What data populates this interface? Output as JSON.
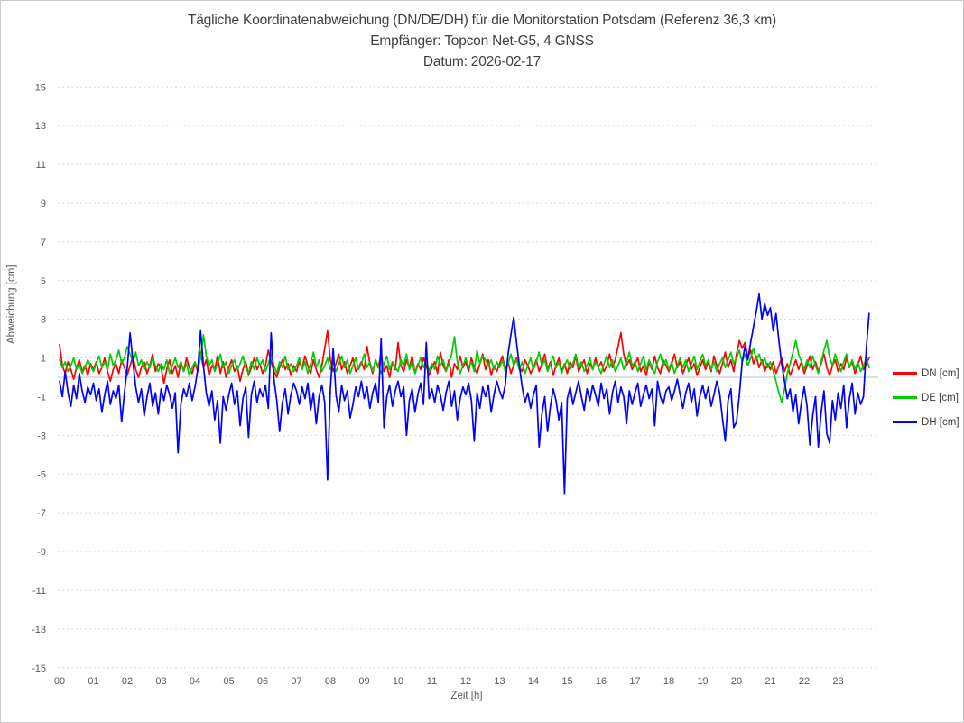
{
  "page": {
    "background": "#FFFFFF",
    "border_color": "#C9C9C9",
    "title_color": "#404040",
    "axis_text_color": "#595959",
    "grid_color": "#DADADA",
    "zero_line_color": "#C0C0C0"
  },
  "chart_data": {
    "type": "line",
    "title": "Tägliche Koordinatenabweichung (DN/DE/DH) für die Monitorstation Potsdam (Referenz 36,3 km)",
    "subtitle": "Empfänger: Topcon Net-G5, 4 GNSS",
    "date_label": "Datum: 2026-02-17",
    "xlabel": "Zeit [h]",
    "ylabel": "Abweichung [cm]",
    "x_ticks": [
      "00",
      "01",
      "02",
      "03",
      "04",
      "05",
      "06",
      "07",
      "08",
      "09",
      "10",
      "11",
      "12",
      "13",
      "14",
      "15",
      "16",
      "17",
      "18",
      "19",
      "20",
      "21",
      "22",
      "23"
    ],
    "y_ticks": [
      15,
      13,
      11,
      9,
      7,
      5,
      3,
      1,
      -1,
      -3,
      -5,
      -7,
      -9,
      -11,
      -13,
      -15
    ],
    "ylim": [
      -15,
      15
    ],
    "xlim_hours": [
      0,
      24
    ],
    "sample_interval_minutes": 5,
    "grid": "horizontal-dotted",
    "legend_position": "right",
    "series": [
      {
        "name": "DN [cm]",
        "color": "#FF0000",
        "values": [
          1.7,
          0.6,
          0.2,
          0.8,
          0.4,
          -0.1,
          0.5,
          0.9,
          0.3,
          0.6,
          0.1,
          0.7,
          0.4,
          0.8,
          0.2,
          0.5,
          1.0,
          0.3,
          -0.2,
          0.4,
          0.7,
          0.2,
          0.9,
          0.5,
          0.1,
          0.6,
          1.1,
          0.4,
          0.0,
          0.5,
          0.8,
          0.2,
          0.6,
          1.2,
          0.3,
          0.7,
          0.5,
          -0.3,
          0.4,
          0.9,
          0.2,
          0.6,
          0.0,
          0.8,
          0.3,
          1.0,
          0.5,
          0.2,
          0.7,
          0.3,
          1.3,
          0.5,
          0.9,
          0.1,
          0.6,
          0.4,
          1.1,
          0.2,
          0.8,
          0.0,
          0.5,
          0.9,
          0.3,
          0.6,
          -0.2,
          0.4,
          0.8,
          0.1,
          0.5,
          1.0,
          0.4,
          0.7,
          0.2,
          0.6,
          1.4,
          0.8,
          0.3,
          0.0,
          0.5,
          0.9,
          0.4,
          0.7,
          0.1,
          0.6,
          0.3,
          0.8,
          0.5,
          1.1,
          0.6,
          0.2,
          0.9,
          0.4,
          0.0,
          0.6,
          1.5,
          2.4,
          0.9,
          0.3,
          0.7,
          1.2,
          0.4,
          0.8,
          0.2,
          0.6,
          1.0,
          0.3,
          0.5,
          0.8,
          0.4,
          1.6,
          0.7,
          0.2,
          0.9,
          0.5,
          1.2,
          0.3,
          0.6,
          0.0,
          0.8,
          0.4,
          1.8,
          0.6,
          0.3,
          0.9,
          0.5,
          1.1,
          0.2,
          0.7,
          0.4,
          1.0,
          0.6,
          0.1,
          0.5,
          0.8,
          0.2,
          1.3,
          0.6,
          0.3,
          0.9,
          0.0,
          0.7,
          0.4,
          1.1,
          0.5,
          0.8,
          0.3,
          1.0,
          0.5,
          0.2,
          0.7,
          1.2,
          0.4,
          0.9,
          0.1,
          0.6,
          0.3,
          0.7,
          1.1,
          0.4,
          0.8,
          0.2,
          0.6,
          1.0,
          0.5,
          0.3,
          0.9,
          0.6,
          0.2,
          0.5,
          0.9,
          0.3,
          0.7,
          1.2,
          0.4,
          0.8,
          0.1,
          0.6,
          1.0,
          0.3,
          0.7,
          0.2,
          0.8,
          0.5,
          1.1,
          0.3,
          0.6,
          0.9,
          0.2,
          0.7,
          0.4,
          1.0,
          0.5,
          0.8,
          0.3,
          0.6,
          1.2,
          0.5,
          0.9,
          1.6,
          2.3,
          1.2,
          0.6,
          0.9,
          0.4,
          0.7,
          1.0,
          0.3,
          0.6,
          0.1,
          0.8,
          0.4,
          1.1,
          0.5,
          0.2,
          0.9,
          0.6,
          0.3,
          0.7,
          1.2,
          0.5,
          0.8,
          0.2,
          0.6,
          1.0,
          0.4,
          0.7,
          0.1,
          0.5,
          0.9,
          0.4,
          0.8,
          0.3,
          1.1,
          0.6,
          0.2,
          0.7,
          1.3,
          0.5,
          0.9,
          0.3,
          1.2,
          1.9,
          1.5,
          1.8,
          1.0,
          1.4,
          0.7,
          1.1,
          0.5,
          0.9,
          0.3,
          0.7,
          0.4,
          0.8,
          0.2,
          0.6,
          1.0,
          0.3,
          0.7,
          0.1,
          0.5,
          0.9,
          0.4,
          0.8,
          0.2,
          0.6,
          1.1,
          0.4,
          0.8,
          0.3,
          0.7,
          1.2,
          0.5,
          0.1,
          0.6,
          0.9,
          0.3,
          0.7,
          0.4,
          1.0,
          0.5,
          0.8,
          0.2,
          0.6,
          1.1,
          0.4,
          0.7,
          1.0
        ]
      },
      {
        "name": "DE [cm]",
        "color": "#00CC00",
        "values": [
          0.9,
          0.5,
          0.8,
          0.3,
          0.6,
          1.0,
          0.4,
          0.7,
          0.2,
          0.5,
          0.9,
          0.6,
          0.3,
          0.7,
          1.1,
          0.5,
          0.8,
          0.4,
          1.2,
          0.6,
          0.9,
          1.4,
          0.7,
          1.0,
          1.6,
          1.2,
          0.8,
          1.3,
          0.6,
          0.9,
          0.4,
          0.8,
          0.5,
          1.0,
          0.6,
          0.3,
          0.7,
          0.4,
          0.9,
          0.2,
          0.6,
          1.0,
          0.5,
          0.8,
          0.3,
          0.7,
          0.1,
          0.5,
          0.8,
          0.4,
          1.0,
          2.2,
          1.1,
          0.6,
          0.9,
          0.3,
          0.7,
          1.2,
          0.5,
          0.8,
          0.2,
          0.6,
          0.9,
          0.4,
          0.7,
          1.1,
          0.5,
          0.2,
          0.8,
          0.4,
          1.0,
          0.6,
          0.9,
          0.3,
          0.7,
          1.2,
          0.6,
          0.2,
          0.8,
          0.5,
          1.1,
          0.4,
          0.7,
          0.3,
          0.6,
          1.0,
          0.4,
          0.8,
          0.2,
          0.7,
          1.3,
          0.5,
          0.9,
          0.3,
          0.6,
          1.0,
          0.4,
          0.8,
          0.3,
          0.7,
          1.1,
          0.5,
          0.9,
          0.2,
          0.6,
          1.0,
          0.4,
          0.7,
          1.2,
          0.5,
          0.8,
          0.3,
          0.9,
          0.6,
          0.2,
          0.7,
          1.1,
          0.4,
          0.8,
          0.5,
          0.3,
          0.9,
          0.6,
          1.2,
          0.4,
          0.8,
          0.2,
          0.6,
          1.0,
          0.5,
          0.9,
          0.3,
          0.7,
          0.4,
          1.1,
          0.6,
          0.9,
          0.3,
          0.7,
          1.2,
          2.1,
          0.8,
          0.2,
          0.6,
          1.0,
          0.5,
          0.8,
          0.3,
          1.4,
          0.7,
          1.1,
          0.9,
          0.6,
          0.9,
          0.4,
          0.8,
          0.5,
          0.9,
          0.3,
          0.7,
          1.2,
          0.6,
          0.9,
          0.4,
          0.8,
          0.2,
          0.6,
          1.0,
          0.4,
          0.8,
          1.3,
          0.6,
          0.9,
          0.3,
          0.7,
          1.1,
          0.5,
          0.8,
          0.2,
          0.6,
          0.9,
          0.4,
          0.7,
          1.2,
          0.5,
          0.8,
          0.3,
          0.6,
          1.0,
          0.4,
          0.8,
          0.5,
          0.2,
          0.7,
          1.1,
          0.5,
          0.9,
          0.3,
          0.6,
          1.0,
          0.4,
          0.8,
          1.3,
          0.6,
          0.8,
          0.3,
          0.7,
          1.1,
          0.4,
          0.9,
          0.5,
          0.2,
          0.8,
          1.2,
          0.6,
          0.9,
          0.4,
          0.8,
          0.2,
          0.6,
          1.0,
          0.5,
          0.9,
          0.3,
          0.7,
          1.1,
          0.4,
          0.8,
          1.2,
          0.6,
          0.9,
          0.4,
          0.8,
          0.3,
          0.7,
          1.0,
          0.5,
          0.9,
          1.3,
          0.7,
          1.0,
          1.4,
          0.8,
          1.2,
          0.6,
          1.0,
          1.5,
          0.9,
          1.2,
          0.7,
          1.0,
          0.5,
          0.8,
          0.3,
          -0.2,
          -0.8,
          -1.3,
          -0.6,
          0.2,
          0.7,
          1.3,
          1.9,
          1.2,
          0.8,
          0.4,
          0.9,
          0.5,
          1.1,
          0.6,
          0.2,
          0.8,
          1.4,
          1.9,
          1.0,
          0.6,
          1.2,
          0.7,
          0.3,
          0.8,
          1.2,
          0.5,
          0.9,
          0.4,
          0.8,
          0.3,
          0.6,
          1.0,
          0.5
        ]
      },
      {
        "name": "DH [cm]",
        "color": "#0000FF",
        "values": [
          -0.2,
          -1.0,
          0.3,
          -0.8,
          -1.5,
          -0.4,
          -1.1,
          0.2,
          -0.7,
          -1.3,
          -0.5,
          -0.9,
          -0.3,
          -1.2,
          -0.6,
          -1.8,
          -0.9,
          -0.2,
          -1.4,
          -0.7,
          -1.1,
          -0.4,
          -2.3,
          -0.8,
          0.5,
          2.3,
          0.8,
          -0.5,
          -1.3,
          -0.6,
          -2.0,
          -1.0,
          -0.3,
          -1.5,
          -0.8,
          -1.9,
          -0.6,
          -1.2,
          -0.4,
          -0.9,
          -1.6,
          -0.8,
          -3.9,
          -1.4,
          -0.6,
          -1.0,
          -0.3,
          -1.2,
          -0.5,
          0.4,
          2.4,
          0.6,
          -0.8,
          -1.5,
          -0.7,
          -2.2,
          -1.2,
          -3.4,
          -1.0,
          -1.7,
          -0.9,
          -0.3,
          -1.4,
          -0.7,
          -2.5,
          -1.1,
          -0.5,
          -3.1,
          -0.9,
          -0.2,
          -1.3,
          -0.6,
          -1.0,
          -0.4,
          -1.6,
          2.3,
          -0.1,
          -1.2,
          -2.8,
          -1.3,
          -0.6,
          -1.9,
          -0.9,
          -0.3,
          -0.7,
          -1.4,
          -0.5,
          -1.1,
          -0.3,
          -1.7,
          -0.8,
          -2.4,
          -1.0,
          -0.4,
          -1.3,
          -5.3,
          -0.6,
          1.5,
          -0.9,
          -1.8,
          -0.4,
          -1.2,
          -0.7,
          -2.1,
          -1.4,
          -0.5,
          -1.0,
          -0.2,
          -1.1,
          -0.5,
          -1.6,
          -0.8,
          -0.3,
          -1.3,
          2.0,
          -2.6,
          -1.0,
          -0.4,
          -1.5,
          -0.7,
          -0.2,
          -1.0,
          -0.5,
          -3.0,
          -1.2,
          -0.6,
          -1.8,
          -0.9,
          -0.3,
          -1.4,
          1.8,
          -1.1,
          -0.6,
          -1.3,
          -0.4,
          -0.9,
          -1.7,
          -0.8,
          -0.2,
          -1.5,
          -0.7,
          -2.2,
          -1.1,
          -0.5,
          -0.9,
          -0.3,
          -1.2,
          -3.3,
          -0.8,
          -1.6,
          -0.5,
          -1.0,
          -0.4,
          -1.8,
          -0.9,
          -0.2,
          -0.7,
          -1.1,
          -0.4,
          1.2,
          2.2,
          3.1,
          1.8,
          0.6,
          -0.5,
          -1.3,
          -0.8,
          -1.6,
          -0.9,
          -0.4,
          -3.6,
          -1.9,
          -1.0,
          -2.8,
          -1.5,
          -0.6,
          -1.2,
          -2.2,
          -1.3,
          -6.0,
          -1.1,
          -0.5,
          -1.4,
          -0.8,
          -0.2,
          -1.0,
          -1.7,
          -0.6,
          -1.2,
          -0.4,
          -0.9,
          -1.5,
          -0.3,
          -1.1,
          -0.6,
          -1.9,
          -0.8,
          -0.2,
          -1.3,
          -0.5,
          -1.0,
          -2.4,
          -0.7,
          -1.4,
          -0.8,
          -0.3,
          -1.5,
          -0.9,
          -0.4,
          -1.1,
          -0.6,
          -2.5,
          -0.2,
          -1.0,
          -1.4,
          -0.7,
          -0.5,
          -1.2,
          -0.7,
          -0.1,
          -0.9,
          -1.6,
          -0.8,
          -0.3,
          -1.3,
          -0.6,
          -2.0,
          -1.0,
          -0.4,
          -1.1,
          -0.5,
          -1.5,
          -0.9,
          -0.2,
          -0.8,
          -2.1,
          -3.3,
          -1.2,
          -0.6,
          -2.6,
          -2.3,
          -0.9,
          0.8,
          1.6,
          0.9,
          1.8,
          2.6,
          3.4,
          4.3,
          3.0,
          3.8,
          3.2,
          3.6,
          2.4,
          3.3,
          1.9,
          0.7,
          -0.2,
          -1.1,
          -0.6,
          -1.8,
          -0.9,
          -2.4,
          -1.3,
          -0.5,
          -1.5,
          -3.5,
          -2.0,
          -1.0,
          -3.6,
          -1.8,
          -0.7,
          -2.9,
          -3.4,
          -1.2,
          -2.2,
          -0.8,
          -1.6,
          -0.4,
          -2.6,
          -1.1,
          -0.3,
          -1.9,
          -0.8,
          -1.4,
          -1.0,
          1.5,
          3.3
        ]
      }
    ]
  }
}
